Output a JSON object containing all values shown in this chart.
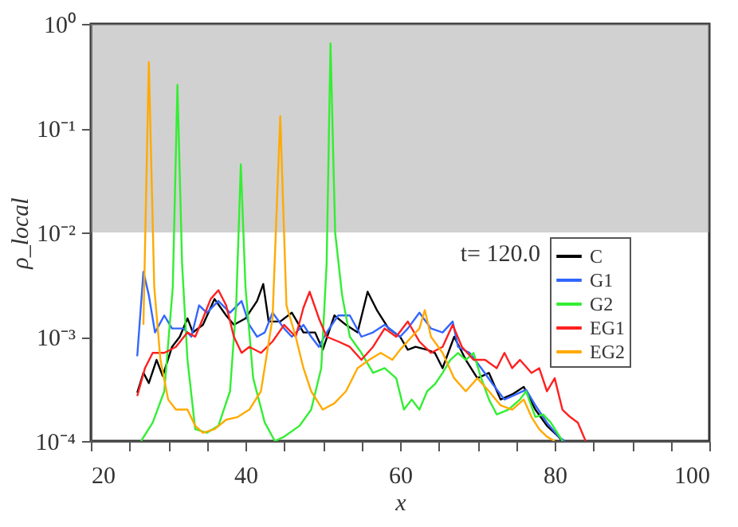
{
  "chart_data": {
    "type": "line",
    "xlabel": "x",
    "ylabel": "ρ_local",
    "log": "y",
    "grid": false,
    "legend": "right",
    "line_style": "solid",
    "marker": "none",
    "xlim": [
      20,
      100
    ],
    "ylim": [
      0.0001,
      1
    ],
    "xticks": [
      20,
      {
        "value": 25,
        "label": null
      },
      {
        "value": 30,
        "label": null
      },
      {
        "value": 35,
        "label": null
      },
      40,
      {
        "value": 45,
        "label": null
      },
      {
        "value": 50,
        "label": null
      },
      {
        "value": 55,
        "label": null
      },
      60,
      {
        "value": 65,
        "label": null
      },
      {
        "value": 70,
        "label": null
      },
      {
        "value": 75,
        "label": null
      },
      80,
      {
        "value": 85,
        "label": null
      },
      {
        "value": 90,
        "label": null
      },
      {
        "value": 95,
        "label": null
      },
      100
    ],
    "yticks": [
      {
        "value": 0.0001,
        "label": "10⁻⁴"
      },
      {
        "value": 0.001,
        "label": "10⁻³"
      },
      {
        "value": 0.01,
        "label": "10⁻²"
      },
      {
        "value": 0.1,
        "label": "10⁻¹"
      },
      {
        "value": 1,
        "label": "10⁰"
      }
    ],
    "bands": [
      {
        "axis": "y",
        "from": 0.01,
        "to": 1,
        "label": null,
        "color": "#9a9a9a"
      }
    ],
    "annotations": [
      "t=  120.0"
    ],
    "series": [
      {
        "name": "C",
        "color": "#000000",
        "x": [
          26,
          26.8,
          27.5,
          28.5,
          29.3,
          30.5,
          31.5,
          32.5,
          33.2,
          34.5,
          36,
          37.5,
          38.5,
          40,
          41.5,
          42.3,
          43,
          44.5,
          46,
          47.5,
          49,
          50,
          51.5,
          53,
          54.5,
          55.8,
          57,
          58.5,
          60,
          61,
          62,
          63.5,
          64.5,
          65.5,
          67,
          68.5,
          70,
          71.5,
          73,
          74.5,
          76,
          77.5,
          79,
          80.5,
          81
        ],
        "values": [
          0.00029,
          0.00045,
          0.00036,
          0.0006,
          0.00042,
          0.0008,
          0.001,
          0.0015,
          0.0011,
          0.0013,
          0.0023,
          0.0016,
          0.0013,
          0.0015,
          0.0022,
          0.0032,
          0.0014,
          0.0014,
          0.0017,
          0.0011,
          0.0011,
          0.00075,
          0.0016,
          0.0013,
          0.0011,
          0.0027,
          0.0018,
          0.0012,
          0.001,
          0.00075,
          0.0008,
          0.00075,
          0.0007,
          0.0005,
          0.001,
          0.0006,
          0.0004,
          0.00045,
          0.00025,
          0.00028,
          0.00033,
          0.0002,
          0.00014,
          0.00011,
          0.0001
        ]
      },
      {
        "name": "G1",
        "color": "#3366ff",
        "x": [
          26,
          26.8,
          27.5,
          28.3,
          29.5,
          30.5,
          32,
          33,
          34,
          35,
          36.5,
          38,
          39.5,
          40.5,
          41.5,
          42.5,
          43.5,
          45,
          46,
          47.5,
          48.5,
          49.5,
          50.5,
          52,
          53.5,
          55,
          56.5,
          58,
          60,
          61,
          62.5,
          64,
          65.5,
          66.8,
          67.5,
          69,
          70.5,
          72,
          73.5,
          75,
          76.3,
          77.5,
          79,
          80.5,
          81.3
        ],
        "values": [
          0.00065,
          0.0042,
          0.0025,
          0.0011,
          0.0016,
          0.0012,
          0.0012,
          0.001,
          0.002,
          0.0017,
          0.0022,
          0.0017,
          0.0022,
          0.0013,
          0.001,
          0.0011,
          0.0017,
          0.0012,
          0.001,
          0.0013,
          0.001,
          0.0008,
          0.0011,
          0.0016,
          0.0016,
          0.001,
          0.0011,
          0.0013,
          0.001,
          0.0012,
          0.0017,
          0.0012,
          0.0011,
          0.0014,
          0.0008,
          0.0007,
          0.0005,
          0.00035,
          0.00025,
          0.00028,
          0.00031,
          0.00022,
          0.00015,
          0.00011,
          0.0001
        ]
      },
      {
        "name": "G2",
        "color": "#33ee33",
        "x": [
          26.5,
          28,
          29.5,
          30.6,
          31.2,
          31.8,
          32.5,
          33.5,
          35,
          36.5,
          38,
          38.8,
          39.4,
          40,
          41,
          42.5,
          43.8,
          45,
          47,
          48.5,
          49.8,
          50.5,
          51,
          51.6,
          52.5,
          53.5,
          55,
          56.5,
          58,
          59.5,
          60.5,
          61.5,
          62.5,
          63.5,
          64.5,
          65.5,
          66.5,
          67.5,
          68.5,
          69.5,
          70.5,
          71.5,
          72.5,
          74,
          75.5,
          76.3,
          77.5,
          78.5,
          79.5,
          81
        ],
        "values": [
          0.0001,
          0.00015,
          0.0003,
          0.003,
          0.26,
          0.005,
          0.0006,
          0.00013,
          0.00012,
          0.00014,
          0.0003,
          0.002,
          0.045,
          0.003,
          0.0004,
          0.00015,
          0.0001,
          0.00011,
          0.00014,
          0.0002,
          0.0005,
          0.005,
          0.65,
          0.01,
          0.0025,
          0.001,
          0.0007,
          0.00045,
          0.0005,
          0.0004,
          0.0002,
          0.00025,
          0.0002,
          0.0003,
          0.00035,
          0.00045,
          0.0006,
          0.0007,
          0.0006,
          0.0007,
          0.0004,
          0.00025,
          0.00018,
          0.0002,
          0.00025,
          0.0003,
          0.00017,
          0.00018,
          0.00015,
          0.0001
        ]
      },
      {
        "name": "EG1",
        "color": "#ff2020",
        "x": [
          26,
          27,
          28,
          29.5,
          31,
          32.5,
          33.5,
          34.5,
          35.5,
          36.5,
          37.5,
          38.5,
          39.5,
          40.5,
          42,
          43.5,
          45,
          46.5,
          47.5,
          48.3,
          49.5,
          50.5,
          52,
          53.5,
          55,
          56.5,
          58,
          59.5,
          61,
          62.5,
          64,
          65.5,
          66.8,
          68,
          69.5,
          71,
          72.5,
          73.5,
          74.5,
          75.5,
          77,
          78,
          79,
          80,
          81,
          82,
          83,
          84
        ],
        "values": [
          0.00027,
          0.0005,
          0.0007,
          0.0007,
          0.0008,
          0.0011,
          0.001,
          0.0015,
          0.0023,
          0.0028,
          0.002,
          0.001,
          0.0007,
          0.0008,
          0.0007,
          0.0009,
          0.0013,
          0.001,
          0.0019,
          0.0027,
          0.0015,
          0.001,
          0.0009,
          0.0008,
          0.0006,
          0.0008,
          0.0012,
          0.001,
          0.0014,
          0.0009,
          0.0007,
          0.0008,
          0.0013,
          0.0008,
          0.0006,
          0.0006,
          0.0005,
          0.0007,
          0.0005,
          0.0006,
          0.00045,
          0.0005,
          0.0003,
          0.0004,
          0.0002,
          0.00017,
          0.00015,
          0.0001
        ]
      },
      {
        "name": "EG2",
        "color": "#ffaa00",
        "x": [
          26.8,
          27.5,
          28.2,
          29,
          30,
          31,
          32.5,
          33.5,
          34.5,
          36,
          37.5,
          39,
          40.5,
          42,
          43.5,
          44.5,
          45.3,
          46.5,
          47.5,
          48.5,
          50,
          51.5,
          53,
          54.5,
          56,
          57.5,
          59,
          60,
          61.5,
          62.5,
          63.2,
          64,
          65.5,
          67,
          68.5,
          70,
          71.5,
          73,
          74.5,
          76,
          77,
          78,
          79,
          80
        ],
        "values": [
          0.0013,
          0.43,
          0.003,
          0.0006,
          0.00025,
          0.0002,
          0.0002,
          0.00014,
          0.00012,
          0.00013,
          0.00016,
          0.00017,
          0.0002,
          0.0003,
          0.0015,
          0.13,
          0.002,
          0.001,
          0.0005,
          0.0003,
          0.0002,
          0.00023,
          0.0003,
          0.0005,
          0.0006,
          0.0007,
          0.0006,
          0.00075,
          0.001,
          0.0012,
          0.0018,
          0.001,
          0.0007,
          0.0004,
          0.0003,
          0.0004,
          0.0003,
          0.00022,
          0.0002,
          0.00025,
          0.00017,
          0.00013,
          0.00011,
          0.0001
        ]
      }
    ]
  }
}
